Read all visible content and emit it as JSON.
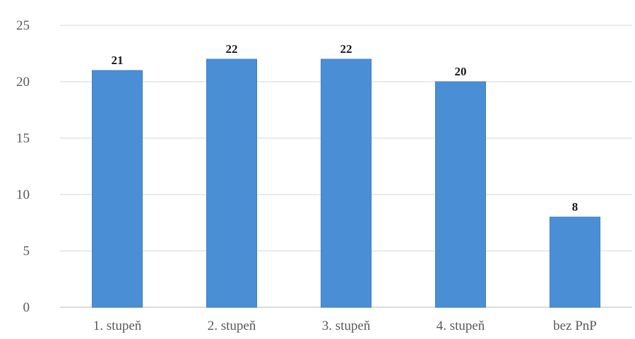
{
  "chart_data": {
    "type": "bar",
    "title": "",
    "xlabel": "",
    "ylabel": "",
    "categories": [
      "1. stupeň",
      "2. stupeň",
      "3. stupeň",
      "4. stupeň",
      "bez PnP"
    ],
    "values": [
      21,
      22,
      22,
      20,
      8
    ],
    "ylim": [
      0,
      25
    ],
    "yticks": [
      0,
      5,
      10,
      15,
      20,
      25
    ],
    "grid": true,
    "legend": "none",
    "data_labels": true,
    "colors": {
      "bar": "#4a8fd6",
      "bar_edge": "#3f7fc4",
      "grid": "#e3e3e3"
    }
  }
}
